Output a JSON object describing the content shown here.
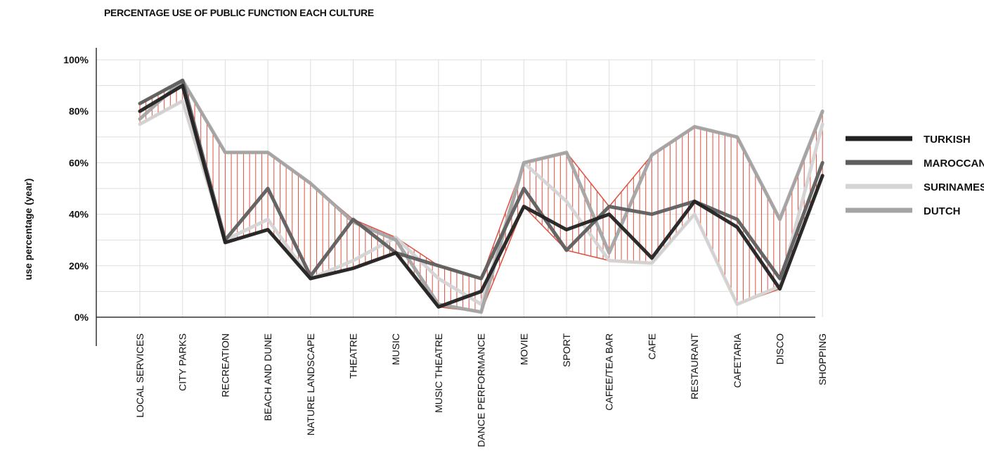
{
  "chart_data": {
    "type": "line",
    "title": "PERCENTAGE USE OF PUBLIC FUNCTION EACH CULTURE",
    "ylabel": "use percentage (year)",
    "xlabel": "",
    "ylim": [
      0,
      100
    ],
    "yticks": [
      0,
      20,
      40,
      60,
      80,
      100
    ],
    "ytick_labels": [
      "0%",
      "20%",
      "40%",
      "60%",
      "80%",
      "100%"
    ],
    "grid": true,
    "legend_position": "right",
    "categories": [
      "LOCAL  SERVICES",
      "CITY PARKS",
      "RECREATION",
      "BEACH AND DUNE",
      "NATURE LANDSCAPE",
      "THEATRE",
      "MUSIC",
      "MUSIC THEATRE",
      "DANCE PERFORMANCE",
      "MOVIE",
      "SPORT",
      "CAFEE/TEA BAR",
      "CAFE",
      "RESTAURANT",
      "CAFETARIA",
      "DISCO",
      "SHOPPING"
    ],
    "series": [
      {
        "name": "TURKISH",
        "color": "#222222",
        "values": [
          80,
          90,
          29,
          34,
          15,
          19,
          25,
          4,
          10,
          43,
          34,
          40,
          23,
          45,
          35,
          11,
          55
        ]
      },
      {
        "name": "MAROCCAN",
        "color": "#5e5e5e",
        "values": [
          83,
          92,
          30,
          50,
          16,
          38,
          25,
          20,
          15,
          50,
          26,
          43,
          40,
          45,
          38,
          15,
          60
        ]
      },
      {
        "name": "SURINAMESE",
        "color": "#d4d4d4",
        "values": [
          75,
          84,
          30,
          38,
          15,
          22,
          31,
          15,
          5,
          60,
          45,
          22,
          21,
          40,
          5,
          12,
          75
        ]
      },
      {
        "name": "DUTCH",
        "color": "#a4a4a4",
        "values": [
          77,
          92,
          64,
          64,
          52,
          37,
          30,
          5,
          2,
          60,
          64,
          25,
          63,
          74,
          70,
          38,
          80
        ]
      }
    ],
    "envelope_color": "#e05040"
  }
}
